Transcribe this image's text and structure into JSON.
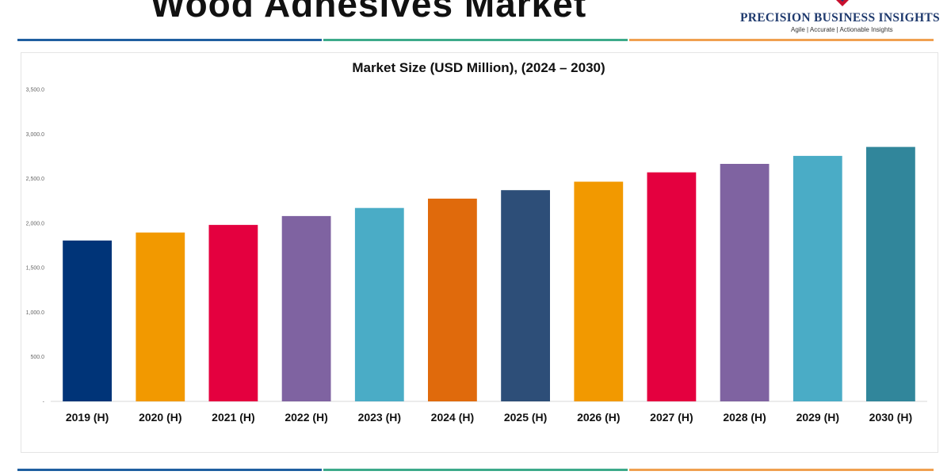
{
  "page": {
    "title": "Wood Adhesives Market"
  },
  "brand": {
    "name": "PRECISION BUSINESS INSIGHTS",
    "tagline": "Agile | Accurate | Actionable Insights"
  },
  "colors": {
    "rule_blue": "#1f5fa0",
    "rule_green": "#3daa8a",
    "rule_orange": "#f0a050"
  },
  "chart_data": {
    "type": "bar",
    "title": "Market Size (USD Million), (2024 – 2030)",
    "xlabel": "",
    "ylabel": "",
    "categories": [
      "2019 (H)",
      "2020 (H)",
      "2021 (H)",
      "2022 (H)",
      "2023 (H)",
      "2024 (H)",
      "2025 (H)",
      "2026 (H)",
      "2027 (H)",
      "2028 (H)",
      "2029 (H)",
      "2030 (H)"
    ],
    "values": [
      1805,
      1895,
      1980,
      2080,
      2170,
      2275,
      2370,
      2465,
      2570,
      2665,
      2755,
      2855
    ],
    "colors": [
      "#003478",
      "#f29900",
      "#e4003f",
      "#7f63a1",
      "#4aacc6",
      "#e06a0c",
      "#2d4e78",
      "#f29900",
      "#e4003f",
      "#7f63a1",
      "#4aacc6",
      "#31869b"
    ],
    "ylim": [
      0,
      3500
    ],
    "yticks": [
      0,
      500,
      1000,
      1500,
      2000,
      2500,
      3000,
      3500
    ],
    "ytick_labels": [
      "-",
      "500.0",
      "1,000.0",
      "1,500.0",
      "2,000.0",
      "2,500.0",
      "3,000.0",
      "3,500.0"
    ],
    "grid": false,
    "legend": "none"
  }
}
